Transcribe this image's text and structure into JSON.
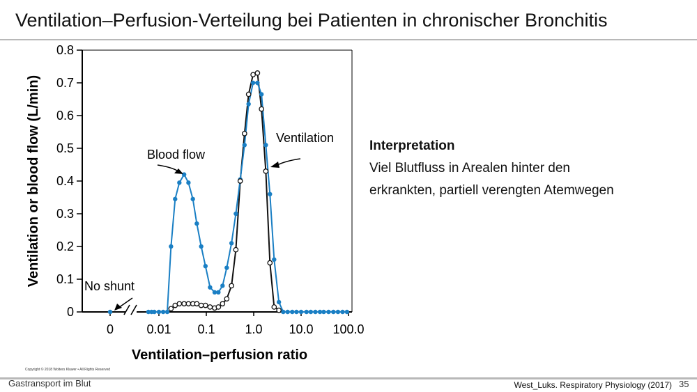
{
  "slide": {
    "title": "Ventilation–Perfusion-Verteilung bei Patienten in chronischer Bronchitis",
    "footer_left": "Gastransport im Blut",
    "footer_right": "West_Luks. Respiratory Physiology (2017)",
    "page_number": "35"
  },
  "interpretation": {
    "heading": "Interpretation",
    "line1": "Viel Blutfluss in Arealen hinter den",
    "line2": "erkrankten, partiell verengten Atemwegen"
  },
  "figure": {
    "copyright": "Copyright © 2018 Wolters Kluwer • All Rights Reserved",
    "annotations": {
      "blood_flow": "Blood flow",
      "ventilation": "Ventilation",
      "no_shunt": "No  shunt"
    }
  },
  "chart_data": {
    "type": "line",
    "xlabel": "Ventilation–perfusion ratio",
    "ylabel": "Ventilation or blood flow (L/min)",
    "x_scale": "log (with break after 0)",
    "x_tick_labels": [
      "0",
      "0.01",
      "0.1",
      "1.0",
      "10.0",
      "100.0"
    ],
    "y_tick_labels": [
      "0",
      "0.1",
      "0.2",
      "0.3",
      "0.4",
      "0.5",
      "0.6",
      "0.7",
      "0.8"
    ],
    "ylim": [
      0,
      0.8
    ],
    "grid": false,
    "colors": {
      "blood_flow": "#1a7fc4",
      "ventilation": "#111111"
    },
    "series": [
      {
        "name": "Blood flow",
        "x": [
          0,
          0.006,
          0.007,
          0.008,
          0.01,
          0.0123,
          0.015,
          0.018,
          0.022,
          0.027,
          0.034,
          0.042,
          0.052,
          0.063,
          0.078,
          0.096,
          0.12,
          0.15,
          0.18,
          0.22,
          0.27,
          0.34,
          0.42,
          0.52,
          0.64,
          0.78,
          0.97,
          1.2,
          1.46,
          1.8,
          2.2,
          2.7,
          3.4,
          4.2,
          5.2,
          6.5,
          8,
          10,
          13,
          16,
          20,
          25,
          30,
          38,
          48,
          60,
          75,
          93
        ],
        "y": [
          0,
          0,
          0,
          0,
          0,
          0,
          0,
          0.2,
          0.345,
          0.395,
          0.42,
          0.395,
          0.345,
          0.27,
          0.2,
          0.14,
          0.075,
          0.06,
          0.06,
          0.08,
          0.135,
          0.21,
          0.3,
          0.405,
          0.51,
          0.635,
          0.7,
          0.7,
          0.665,
          0.51,
          0.36,
          0.16,
          0.03,
          0,
          0,
          0,
          0,
          0,
          0,
          0,
          0,
          0,
          0,
          0,
          0,
          0,
          0,
          0
        ]
      },
      {
        "name": "Ventilation",
        "x": [
          0.018,
          0.022,
          0.027,
          0.034,
          0.042,
          0.052,
          0.063,
          0.078,
          0.096,
          0.12,
          0.15,
          0.18,
          0.22,
          0.27,
          0.34,
          0.42,
          0.52,
          0.64,
          0.78,
          0.97,
          1.2,
          1.46,
          1.8,
          2.2,
          2.7,
          3.4
        ],
        "y": [
          0.01,
          0.02,
          0.025,
          0.025,
          0.025,
          0.025,
          0.025,
          0.02,
          0.02,
          0.015,
          0.012,
          0.015,
          0.025,
          0.04,
          0.08,
          0.19,
          0.4,
          0.545,
          0.665,
          0.725,
          0.73,
          0.62,
          0.43,
          0.15,
          0.015,
          0.005
        ]
      }
    ]
  }
}
